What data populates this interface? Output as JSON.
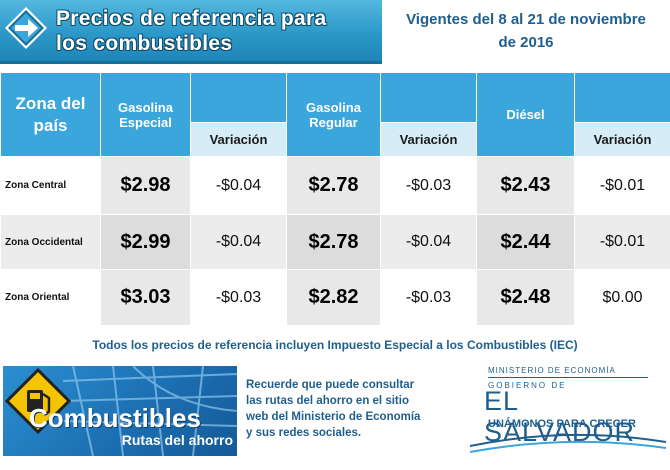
{
  "header": {
    "title_line1": "Precios de referencia para",
    "title_line2": "los combustibles",
    "validity_line1": "Vigentes del 8 al 21 de noviembre",
    "validity_line2": "de 2016"
  },
  "table": {
    "headers": {
      "zone_line1": "Zona del",
      "zone_line2": "país",
      "gas_especial_line1": "Gasolina",
      "gas_especial_line2": "Especial",
      "gas_regular_line1": "Gasolina",
      "gas_regular_line2": "Regular",
      "diesel": "Diésel",
      "variation": "Variación"
    },
    "rows": [
      {
        "zone": "Zona Central",
        "especial": "$2.98",
        "especial_var": "-$0.04",
        "regular": "$2.78",
        "regular_var": "-$0.03",
        "diesel": "$2.43",
        "diesel_var": "-$0.01"
      },
      {
        "zone": "Zona Occidental",
        "especial": "$2.99",
        "especial_var": "-$0.04",
        "regular": "$2.78",
        "regular_var": "-$0.04",
        "diesel": "$2.44",
        "diesel_var": "-$0.01"
      },
      {
        "zone": "Zona Oriental",
        "especial": "$3.03",
        "especial_var": "-$0.03",
        "regular": "$2.82",
        "regular_var": "-$0.03",
        "diesel": "$2.48",
        "diesel_var": "$0.00"
      }
    ]
  },
  "note": "Todos los precios de referencia incluyen Impuesto Especial a los Combustibles (IEC)",
  "banner": {
    "title": "Combustibles",
    "subtitle": "Rutas del ahorro"
  },
  "reminder": {
    "line1": "Recuerde que puede consultar",
    "line2": "las rutas del ahorro en el sitio",
    "line3": "web del Ministerio de Economía",
    "line4": "y sus redes sociales."
  },
  "government": {
    "ministry": "MINISTERIO DE ECONOMÍA",
    "gobierno": "GOBIERNO DE",
    "country": "EL SALVADOR",
    "motto": "UNÁMONOS PARA CRECER"
  },
  "colors": {
    "accent_blue": "#3aa6dc",
    "dark_blue_text": "#1f5f8e"
  }
}
